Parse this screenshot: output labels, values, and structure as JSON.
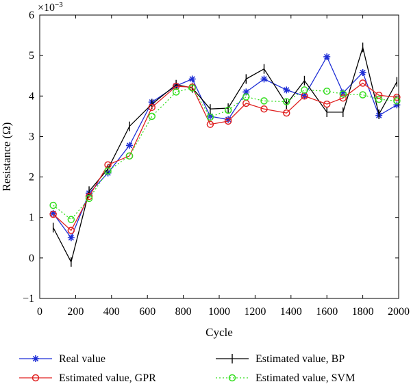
{
  "chart_data": {
    "type": "line",
    "title": "",
    "xlabel": "Cycle",
    "ylabel": "Resistance (Ω)",
    "y_multiplier_label": "×10",
    "y_multiplier_exponent": "−3",
    "xlim": [
      0,
      2000
    ],
    "ylim": [
      -1,
      6
    ],
    "x_ticks": [
      0,
      200,
      400,
      600,
      800,
      1000,
      1200,
      1400,
      1600,
      1800,
      2000
    ],
    "y_ticks": [
      -1,
      0,
      1,
      2,
      3,
      4,
      5,
      6
    ],
    "y_tick_labels": [
      "−1",
      "0",
      "1",
      "2",
      "3",
      "4",
      "5",
      "6"
    ],
    "grid": false,
    "legend_position": "bottom",
    "x": [
      75,
      175,
      275,
      380,
      500,
      625,
      760,
      850,
      950,
      1050,
      1150,
      1250,
      1375,
      1475,
      1600,
      1690,
      1800,
      1890,
      1990
    ],
    "series": [
      {
        "name": "Real value",
        "color": "#1f2fd6",
        "marker": "star",
        "line_style": "solid",
        "values": [
          1.1,
          0.5,
          1.6,
          2.1,
          2.78,
          3.85,
          4.25,
          4.42,
          3.5,
          3.42,
          4.1,
          4.42,
          4.15,
          4.0,
          4.97,
          4.08,
          4.58,
          3.52,
          3.78
        ]
      },
      {
        "name": "Estimated value, BP",
        "color": "#000000",
        "marker": "vbar",
        "line_style": "solid",
        "values": [
          0.75,
          -0.1,
          1.65,
          2.2,
          3.25,
          3.8,
          4.28,
          4.2,
          3.68,
          3.7,
          4.42,
          4.67,
          3.8,
          4.38,
          3.6,
          3.6,
          5.2,
          3.55,
          4.35
        ]
      },
      {
        "name": "Estimated value, GPR",
        "color": "#e02020",
        "marker": "circle",
        "line_style": "solid",
        "values": [
          1.08,
          0.68,
          1.52,
          2.3,
          2.52,
          3.72,
          4.24,
          4.22,
          3.3,
          3.38,
          3.82,
          3.68,
          3.58,
          4.0,
          3.8,
          3.95,
          4.32,
          4.02,
          3.97
        ]
      },
      {
        "name": "Estimated value, SVM",
        "color": "#33dd1e",
        "marker": "circle",
        "line_style": "dotted",
        "values": [
          1.3,
          0.95,
          1.47,
          2.15,
          2.52,
          3.5,
          4.1,
          4.2,
          3.48,
          3.65,
          3.98,
          3.88,
          3.86,
          4.15,
          4.12,
          4.05,
          4.03,
          3.92,
          3.88
        ]
      }
    ]
  }
}
